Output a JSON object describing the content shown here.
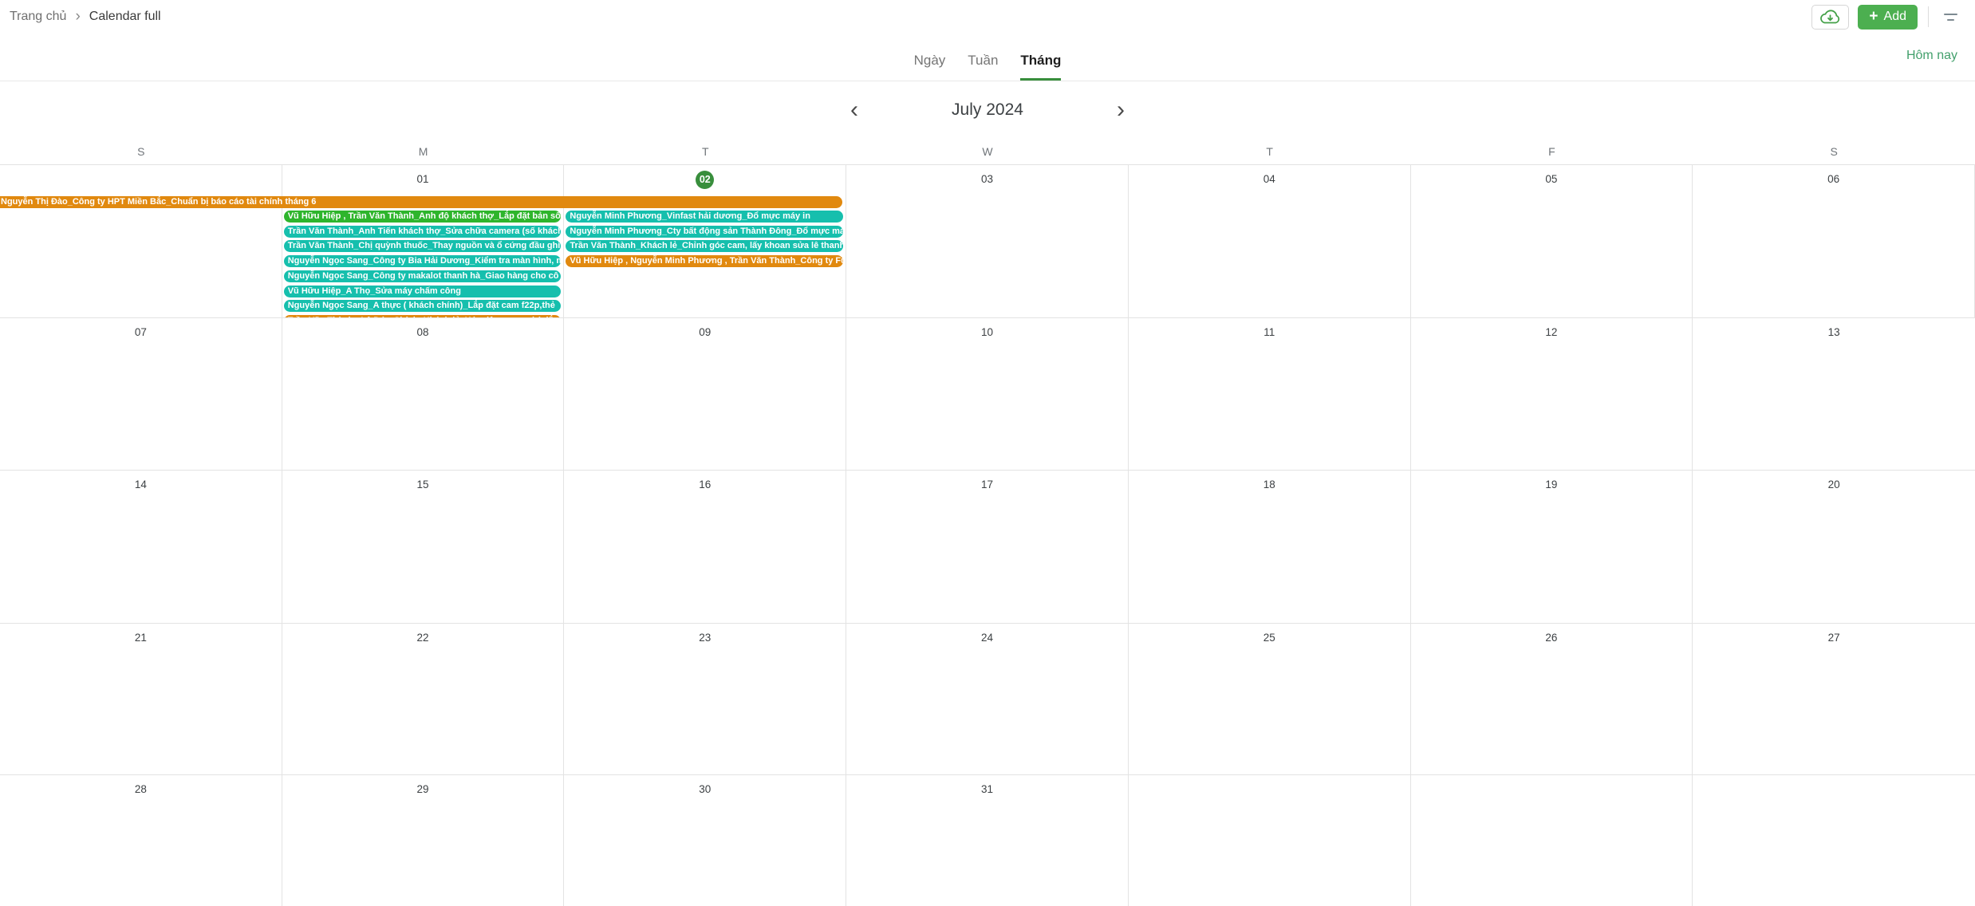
{
  "breadcrumb": {
    "home": "Trang chủ",
    "separator": "›",
    "current": "Calendar full"
  },
  "toolbar": {
    "plus_icon": "+",
    "add_label": "Add"
  },
  "tabs": {
    "items": [
      "Ngày",
      "Tuần",
      "Tháng"
    ],
    "active": "Tháng",
    "today_label": "Hôm nay"
  },
  "calendar": {
    "title": "July 2024",
    "prev_icon": "‹",
    "next_icon": "›",
    "day_headers": [
      "S",
      "M",
      "T",
      "W",
      "T",
      "F",
      "S"
    ],
    "today_date": "02",
    "weeks": [
      [
        "",
        "01",
        "02",
        "03",
        "04",
        "05",
        "06"
      ],
      [
        "07",
        "08",
        "09",
        "10",
        "11",
        "12",
        "13"
      ],
      [
        "14",
        "15",
        "16",
        "17",
        "18",
        "19",
        "20"
      ],
      [
        "21",
        "22",
        "23",
        "24",
        "25",
        "26",
        "27"
      ],
      [
        "28",
        "29",
        "30",
        "31",
        "",
        "",
        ""
      ]
    ],
    "spanning_event": {
      "color": "orange",
      "col_start": 0,
      "col_span": 3,
      "text": "Nguyễn Thị Đào_Công ty HPT Miền Bắc_Chuẩn bị báo cáo tài chính tháng 6"
    },
    "day_events": [
      {
        "day": 1,
        "items": [
          {
            "color": "green",
            "text": "Vũ Hữu Hiệp , Trần Văn Thành_Anh độ khách thợ_Lắp đặt bản số"
          },
          {
            "color": "teal",
            "text": "Trần Văn Thành_Anh Tiến khách thợ_Sửa chữa camera (số khách"
          },
          {
            "color": "teal",
            "text": "Trần Văn Thành_Chị quỳnh thuốc_Thay nguồn và ổ cứng đầu ghi"
          },
          {
            "color": "teal",
            "text": "Nguyễn Ngọc Sang_Công ty Bia Hải Dương_Kiểm tra màn hình, m"
          },
          {
            "color": "teal",
            "text": "Nguyễn Ngọc Sang_Công ty makalot thanh hà_Giao hàng cho cô"
          },
          {
            "color": "teal",
            "text": "Vũ Hữu Hiệp_A Thọ_Sửa máy chấm công"
          },
          {
            "color": "teal",
            "text": "Nguyễn Ngọc Sang_A thực ( khách chính)_Lắp đặt cam f22p,thẻ"
          },
          {
            "color": "orange",
            "text": "Trần Văn Thành , Lê Đức Chính_Khách lẻ_Kéo dây mạng chờ lắp đ"
          }
        ]
      },
      {
        "day": 2,
        "items": [
          {
            "color": "teal",
            "text": "Nguyễn Minh Phương_Vinfast hải dương_Đổ mực máy in"
          },
          {
            "color": "teal",
            "text": "Nguyễn Minh Phương_Cty bất động sản Thành Đông_Đổ mực má"
          },
          {
            "color": "teal",
            "text": "Trần Văn Thành_Khách lẻ_Chỉnh góc cam, lấy khoan sửa lê thanh"
          },
          {
            "color": "orange",
            "text": "Vũ Hữu Hiệp , Nguyễn Minh Phương , Trần Văn Thành_Công ty Fu"
          }
        ]
      }
    ]
  },
  "colors": {
    "accent_green": "#43a047",
    "add_button": "#4caf50",
    "today_circle": "#388e3c",
    "today_link": "#43a06c",
    "event_green": "#2eb52c",
    "event_teal": "#16bfad",
    "event_orange": "#e1890f"
  }
}
